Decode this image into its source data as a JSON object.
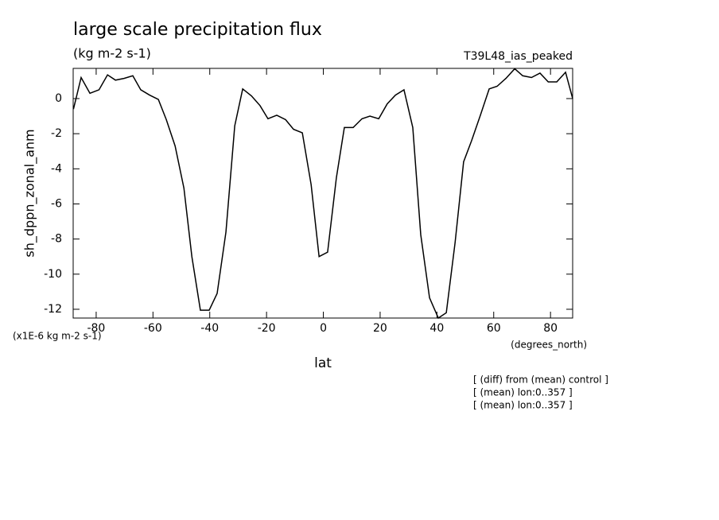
{
  "chart_data": {
    "type": "line",
    "title": "large scale precipitation flux",
    "subtitle": "(kg m-2 s-1)",
    "dataset_label": "T39L48_ias_peaked",
    "y_label": "sh_dppn_zonal_anm",
    "y_units": "(x1E-6 kg m-2 s-1)",
    "x_units": "(degrees_north)",
    "x_label": "lat",
    "notes": [
      "[ (diff) from (mean) control ]",
      "[ (mean) lon:0..357 ]",
      "[ (mean) lon:0..357 ]"
    ],
    "x": [
      -88,
      -85.3,
      -82.2,
      -79,
      -76,
      -73.2,
      -70.2,
      -67.1,
      -64.3,
      -61.2,
      -58.1,
      -55.3,
      -52.2,
      -49.1,
      -46.3,
      -43.3,
      -40.2,
      -37.4,
      -34.3,
      -31.2,
      -28.4,
      -25.3,
      -22.3,
      -19.5,
      -16.4,
      -13.3,
      -10.5,
      -7.4,
      -4.3,
      -1.5,
      1.5,
      4.6,
      7.4,
      10.5,
      13.6,
      16.4,
      19.5,
      22.5,
      25.4,
      28.4,
      31.5,
      34.3,
      37.4,
      40.5,
      43.3,
      46.4,
      49.4,
      52.2,
      55.3,
      58.4,
      61.2,
      64.3,
      67.4,
      70.2,
      73.3,
      76.3,
      79.2,
      82.2,
      85.3,
      87.8
    ],
    "series": [
      {
        "color": "#000000",
        "values": [
          -0.6,
          1.2,
          0.3,
          0.5,
          1.35,
          1.05,
          1.15,
          1.3,
          0.5,
          0.2,
          -0.05,
          -1.2,
          -2.7,
          -5.1,
          -9,
          -12.05,
          -12.05,
          -11.1,
          -7.6,
          -1.55,
          0.55,
          0.15,
          -0.4,
          -1.15,
          -0.95,
          -1.2,
          -1.75,
          -1.95,
          -4.9,
          -9.0,
          -8.75,
          -4.5,
          -1.65,
          -1.65,
          -1.15,
          -1.0,
          -1.15,
          -0.3,
          0.2,
          0.5,
          -1.65,
          -7.75,
          -11.35,
          -12.5,
          -12.2,
          -8.2,
          -3.6,
          -2.4,
          -0.95,
          0.55,
          0.7,
          1.15,
          1.7,
          1.3,
          1.2,
          1.45,
          0.95,
          0.95,
          1.5,
          0
        ]
      }
    ],
    "xlim": [
      -88.1,
      87.8
    ],
    "ylim": [
      -12.5,
      1.72
    ],
    "xticks": [
      -80,
      -60,
      -40,
      -20,
      0,
      20,
      40,
      60,
      80
    ],
    "yticks": [
      0,
      -2,
      -4,
      -6,
      -8,
      -10,
      -12
    ]
  }
}
